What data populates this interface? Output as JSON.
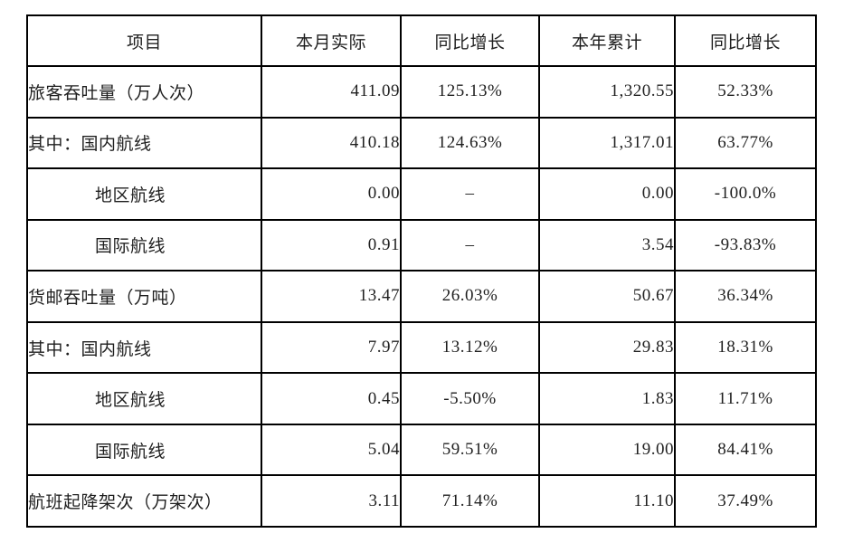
{
  "table": {
    "headers": [
      "项目",
      "本月实际",
      "同比增长",
      "本年累计",
      "同比增长"
    ],
    "rows": [
      {
        "label": "旅客吞吐量（万人次）",
        "indent": false,
        "month_actual": "411.09",
        "month_yoy": "125.13%",
        "ytd_total": "1,320.55",
        "ytd_yoy": "52.33%"
      },
      {
        "label": "其中：国内航线",
        "indent": false,
        "month_actual": "410.18",
        "month_yoy": "124.63%",
        "ytd_total": "1,317.01",
        "ytd_yoy": "63.77%"
      },
      {
        "label": "地区航线",
        "indent": true,
        "month_actual": "0.00",
        "month_yoy": "–",
        "ytd_total": "0.00",
        "ytd_yoy": "-100.0%"
      },
      {
        "label": "国际航线",
        "indent": true,
        "month_actual": "0.91",
        "month_yoy": "–",
        "ytd_total": "3.54",
        "ytd_yoy": "-93.83%"
      },
      {
        "label": "货邮吞吐量（万吨）",
        "indent": false,
        "month_actual": "13.47",
        "month_yoy": "26.03%",
        "ytd_total": "50.67",
        "ytd_yoy": "36.34%"
      },
      {
        "label": "其中：国内航线",
        "indent": false,
        "month_actual": "7.97",
        "month_yoy": "13.12%",
        "ytd_total": "29.83",
        "ytd_yoy": "18.31%"
      },
      {
        "label": "地区航线",
        "indent": true,
        "month_actual": "0.45",
        "month_yoy": "-5.50%",
        "ytd_total": "1.83",
        "ytd_yoy": "11.71%"
      },
      {
        "label": "国际航线",
        "indent": true,
        "month_actual": "5.04",
        "month_yoy": "59.51%",
        "ytd_total": "19.00",
        "ytd_yoy": "84.41%"
      },
      {
        "label": "航班起降架次（万架次）",
        "indent": false,
        "month_actual": "3.11",
        "month_yoy": "71.14%",
        "ytd_total": "11.10",
        "ytd_yoy": "37.49%"
      }
    ]
  }
}
